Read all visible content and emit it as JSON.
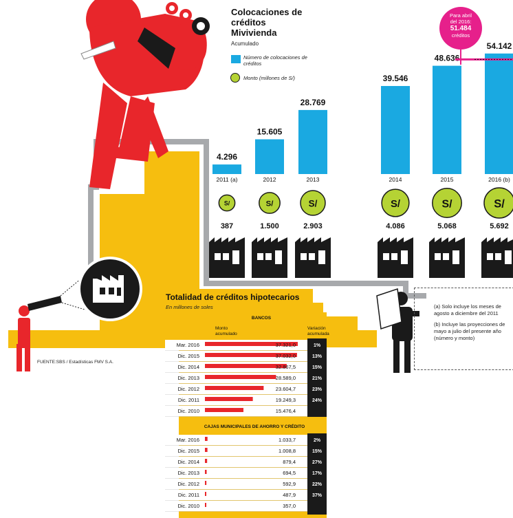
{
  "colors": {
    "red": "#e8262b",
    "yellow": "#f6be0f",
    "blue": "#1aa9e1",
    "green": "#b5d334",
    "magenta": "#e6208b",
    "black": "#1a1a1a",
    "grey": "#a7a9ac"
  },
  "header": {
    "title": "Colocaciones de créditos Mivivienda",
    "subtitle": "Acumulado",
    "legend_count": "Número de colocaciones de créditos",
    "legend_amount": "Monto (millones de S/)"
  },
  "callout": {
    "text_line1": "Para abril",
    "text_line2": "del 2016:",
    "value": "51.484",
    "unit": "créditos"
  },
  "coin_symbol": "S/",
  "notes": {
    "a": "(a) Solo incluye los meses de agosto a diciembre del 2011",
    "b": "(b) Incluye las proyecciones de mayo a julio del presente año (número y monto)"
  },
  "source": "FUENTE:SBS / Estadísticas FMV S.A.",
  "table": {
    "title": "Totalidad de créditos hipotecarios",
    "subtitle": "En millones de soles",
    "col_amount": "Monto acumulado",
    "col_var": "Variación acumulada"
  },
  "chart_data": [
    {
      "type": "bar",
      "title": "Colocaciones de créditos Mivivienda",
      "subtitle": "Acumulado",
      "categories": [
        "2011 (a)",
        "2012",
        "2013",
        "2014",
        "2015",
        "2016 (b)"
      ],
      "series": [
        {
          "name": "Número de colocaciones de créditos",
          "values": [
            4296,
            15605,
            28769,
            39546,
            48636,
            54142
          ],
          "labels": [
            "4.296",
            "15.605",
            "28.769",
            "39.546",
            "48.636",
            "54.142"
          ]
        },
        {
          "name": "Monto (millones de S/)",
          "values": [
            387,
            1500,
            2903,
            4086,
            5068,
            5692
          ],
          "labels": [
            "387",
            "1.500",
            "2.903",
            "4.086",
            "5.068",
            "5.692"
          ]
        }
      ],
      "annotation": {
        "text": "Para abril del 2016: 51.484 créditos",
        "value": 51484
      }
    },
    {
      "type": "bar",
      "title": "Totalidad de créditos hipotecarios",
      "subtitle": "En millones de soles",
      "groups": [
        {
          "name": "BANCOS",
          "rows": [
            {
              "period": "Mar. 2016",
              "amount": 37321.0,
              "amount_label": "37.321,0",
              "variation": "1%"
            },
            {
              "period": "Dic. 2015",
              "amount": 37032.0,
              "amount_label": "37.032,0",
              "variation": "13%"
            },
            {
              "period": "Dic. 2014",
              "amount": 32867.5,
              "amount_label": "32.867,5",
              "variation": "15%"
            },
            {
              "period": "Dic. 2013",
              "amount": 28589.0,
              "amount_label": "28.589,0",
              "variation": "21%"
            },
            {
              "period": "Dic. 2012",
              "amount": 23604.7,
              "amount_label": "23.604,7",
              "variation": "23%"
            },
            {
              "period": "Dic. 2011",
              "amount": 19249.3,
              "amount_label": "19.249,3",
              "variation": "24%"
            },
            {
              "period": "Dic. 2010",
              "amount": 15476.4,
              "amount_label": "15.476,4",
              "variation": ""
            }
          ]
        },
        {
          "name": "CAJAS MUNICIPALES DE AHORRO Y CRÉDITO",
          "rows": [
            {
              "period": "Mar. 2016",
              "amount": 1033.7,
              "amount_label": "1.033,7",
              "variation": "2%"
            },
            {
              "period": "Dic. 2015",
              "amount": 1008.8,
              "amount_label": "1.008,8",
              "variation": "15%"
            },
            {
              "period": "Dic. 2014",
              "amount": 879.4,
              "amount_label": "879,4",
              "variation": "27%"
            },
            {
              "period": "Dic. 2013",
              "amount": 694.5,
              "amount_label": "694,5",
              "variation": "17%"
            },
            {
              "period": "Dic. 2012",
              "amount": 592.9,
              "amount_label": "592,9",
              "variation": "22%"
            },
            {
              "period": "Dic. 2011",
              "amount": 487.9,
              "amount_label": "487,9",
              "variation": "37%"
            },
            {
              "period": "Dic. 2010",
              "amount": 357.0,
              "amount_label": "357,0",
              "variation": ""
            }
          ]
        }
      ]
    }
  ]
}
